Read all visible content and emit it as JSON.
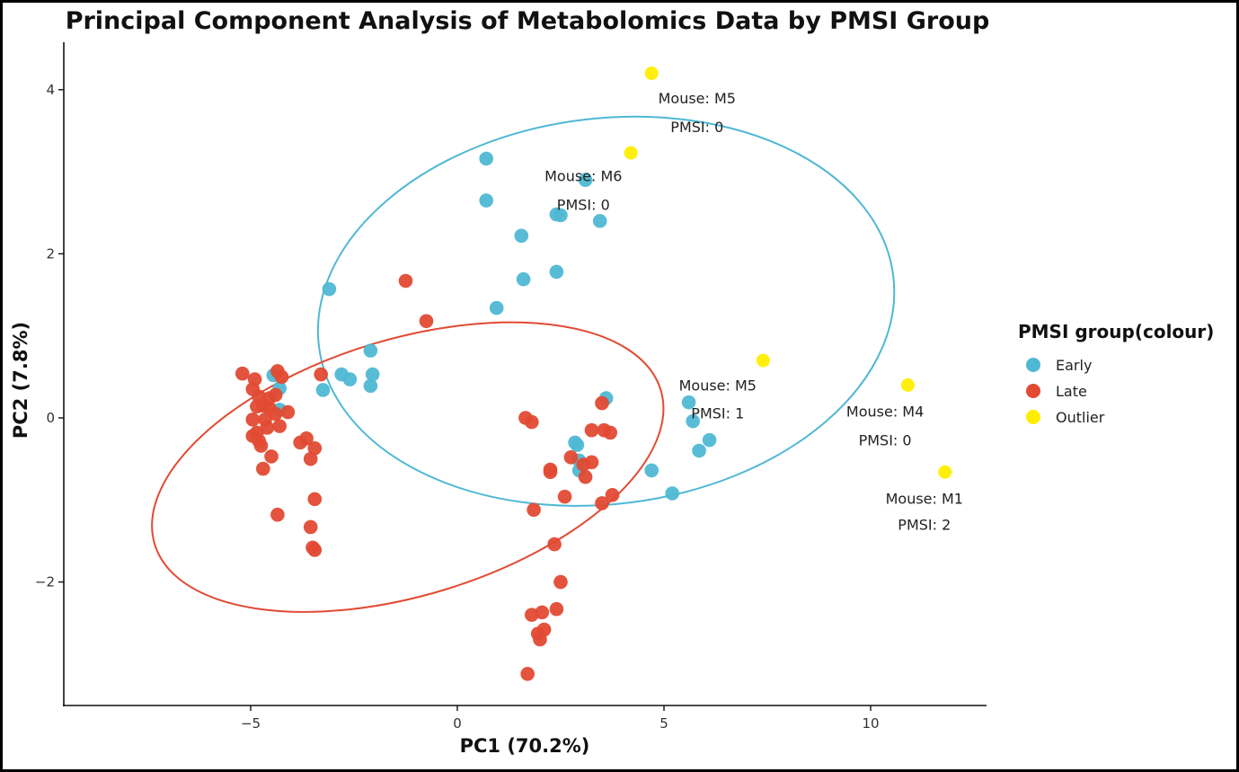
{
  "chart_data": {
    "type": "scatter",
    "title": "Principal Component Analysis of Metabolomics Data by PMSI Group",
    "xlabel": "PC1 (70.2%)",
    "ylabel": "PC2 (7.8%)",
    "xlim": [
      -9.5,
      12.9
    ],
    "ylim": [
      -3.5,
      4.6
    ],
    "xticks": [
      -5,
      0,
      5,
      10
    ],
    "yticks": [
      -2,
      0,
      2,
      4
    ],
    "xtick_labels": [
      "−5",
      "0",
      "5",
      "10"
    ],
    "ytick_labels": [
      "−2",
      "0",
      "2",
      "4"
    ],
    "grid": false,
    "legend": {
      "title": "PMSI group(colour)",
      "placement": "right",
      "entries": [
        "Early",
        "Late",
        "Outlier"
      ]
    },
    "colors": {
      "Early": "#4fb8d4",
      "Late": "#e24a33",
      "Outlier": "#ffee00"
    },
    "series": [
      {
        "name": "Early",
        "points": [
          [
            0.7,
            3.16
          ],
          [
            3.1,
            2.9
          ],
          [
            0.7,
            2.65
          ],
          [
            2.4,
            2.48
          ],
          [
            2.5,
            2.47
          ],
          [
            3.45,
            2.4
          ],
          [
            1.55,
            2.22
          ],
          [
            2.4,
            1.78
          ],
          [
            1.6,
            1.69
          ],
          [
            -3.1,
            1.57
          ],
          [
            0.95,
            1.34
          ],
          [
            -2.1,
            0.82
          ],
          [
            -2.8,
            0.53
          ],
          [
            -2.05,
            0.53
          ],
          [
            -2.6,
            0.47
          ],
          [
            -2.1,
            0.39
          ],
          [
            -3.25,
            0.34
          ],
          [
            -4.3,
            0.36
          ],
          [
            -4.45,
            0.52
          ],
          [
            -4.3,
            0.1
          ],
          [
            3.6,
            0.24
          ],
          [
            5.6,
            0.19
          ],
          [
            5.7,
            -0.04
          ],
          [
            2.85,
            -0.3
          ],
          [
            2.9,
            -0.33
          ],
          [
            2.95,
            -0.52
          ],
          [
            2.95,
            -0.64
          ],
          [
            6.1,
            -0.27
          ],
          [
            5.85,
            -0.4
          ],
          [
            4.7,
            -0.64
          ],
          [
            5.2,
            -0.92
          ]
        ]
      },
      {
        "name": "Late",
        "points": [
          [
            -1.25,
            1.67
          ],
          [
            -0.75,
            1.18
          ],
          [
            -5.2,
            0.54
          ],
          [
            -4.35,
            0.57
          ],
          [
            -4.25,
            0.5
          ],
          [
            -4.9,
            0.47
          ],
          [
            -3.3,
            0.53
          ],
          [
            -4.95,
            0.35
          ],
          [
            -4.8,
            0.26
          ],
          [
            -4.55,
            0.24
          ],
          [
            -4.4,
            0.28
          ],
          [
            -4.7,
            0.15
          ],
          [
            -4.85,
            0.14
          ],
          [
            -4.55,
            0.12
          ],
          [
            -4.4,
            0.05
          ],
          [
            -4.1,
            0.07
          ],
          [
            -4.65,
            -0.02
          ],
          [
            -4.95,
            -0.02
          ],
          [
            -4.3,
            -0.1
          ],
          [
            -4.6,
            -0.12
          ],
          [
            -4.85,
            -0.18
          ],
          [
            -4.95,
            -0.22
          ],
          [
            -4.8,
            -0.28
          ],
          [
            -4.75,
            -0.34
          ],
          [
            -3.8,
            -0.3
          ],
          [
            -3.65,
            -0.25
          ],
          [
            -3.45,
            -0.37
          ],
          [
            -4.5,
            -0.47
          ],
          [
            -3.55,
            -0.5
          ],
          [
            -4.7,
            -0.62
          ],
          [
            -3.45,
            -0.99
          ],
          [
            -4.35,
            -1.18
          ],
          [
            -3.55,
            -1.33
          ],
          [
            -3.5,
            -1.58
          ],
          [
            -3.45,
            -1.61
          ],
          [
            1.65,
            0.0
          ],
          [
            1.8,
            -0.05
          ],
          [
            3.5,
            0.18
          ],
          [
            3.25,
            -0.15
          ],
          [
            3.55,
            -0.15
          ],
          [
            3.7,
            -0.18
          ],
          [
            2.75,
            -0.48
          ],
          [
            3.05,
            -0.57
          ],
          [
            3.25,
            -0.54
          ],
          [
            2.25,
            -0.63
          ],
          [
            2.25,
            -0.66
          ],
          [
            3.1,
            -0.72
          ],
          [
            2.6,
            -0.96
          ],
          [
            3.75,
            -0.94
          ],
          [
            3.5,
            -1.04
          ],
          [
            1.85,
            -1.12
          ],
          [
            2.35,
            -1.54
          ],
          [
            2.5,
            -2.0
          ],
          [
            2.4,
            -2.33
          ],
          [
            2.05,
            -2.37
          ],
          [
            1.8,
            -2.4
          ],
          [
            2.1,
            -2.58
          ],
          [
            1.95,
            -2.63
          ],
          [
            2.0,
            -2.7
          ],
          [
            1.7,
            -3.12
          ]
        ]
      },
      {
        "name": "Outlier",
        "points": [
          [
            4.7,
            4.2
          ],
          [
            4.2,
            3.23
          ],
          [
            7.4,
            0.7
          ],
          [
            10.9,
            0.4
          ],
          [
            11.8,
            -0.66
          ]
        ]
      }
    ],
    "ellipses": [
      {
        "group": "Early",
        "center": [
          3.6,
          1.3
        ],
        "radius_x": 7.0,
        "radius_y": 2.35,
        "angle_deg": -7
      },
      {
        "group": "Late",
        "center": [
          -1.2,
          -0.6
        ],
        "radius_x": 6.4,
        "radius_y": 1.56,
        "angle_deg": -17
      }
    ],
    "annotations": [
      {
        "id": "m5a",
        "lines": [
          "Mouse: M5",
          "PMSI: 0"
        ],
        "x": 5.8,
        "y": [
          3.9,
          3.55
        ]
      },
      {
        "id": "m6",
        "lines": [
          "Mouse: M6",
          "PMSI: 0"
        ],
        "x": 3.05,
        "y": [
          2.95,
          2.6
        ]
      },
      {
        "id": "m5b",
        "lines": [
          "Mouse: M5",
          "PMSI: 1"
        ],
        "x": 6.3,
        "y": [
          0.4,
          0.06
        ]
      },
      {
        "id": "m4",
        "lines": [
          "Mouse: M4",
          "PMSI: 0"
        ],
        "x": 10.35,
        "y": [
          0.08,
          -0.27
        ]
      },
      {
        "id": "m1",
        "lines": [
          "Mouse: M1",
          "PMSI: 2"
        ],
        "x": 11.3,
        "y": [
          -0.98,
          -1.3
        ]
      }
    ]
  }
}
